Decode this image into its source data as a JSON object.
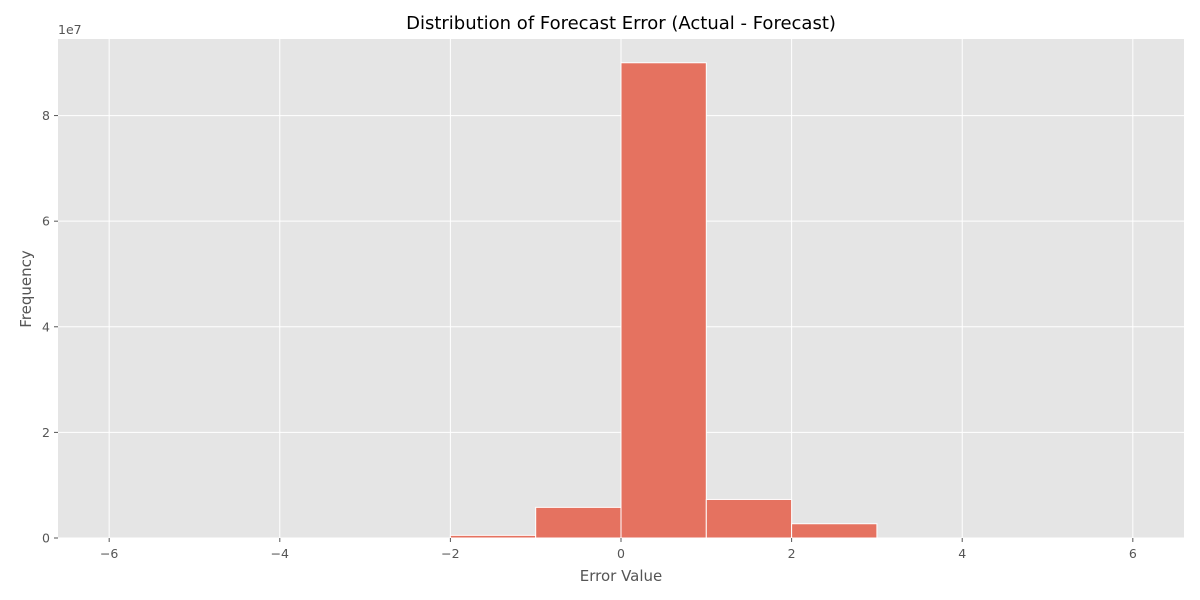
{
  "chart_data": {
    "type": "bar",
    "title": "Distribution of Forecast Error (Actual - Forecast)",
    "xlabel": "Error Value",
    "ylabel": "Frequency",
    "y_offset_label": "1e7",
    "xlim": [
      -6.6,
      6.6
    ],
    "ylim": [
      0,
      9.45
    ],
    "x_ticks": [
      -6,
      -4,
      -2,
      0,
      2,
      4,
      6
    ],
    "x_tick_labels": [
      "−6",
      "−4",
      "−2",
      "0",
      "2",
      "4",
      "6"
    ],
    "y_ticks": [
      0,
      2,
      4,
      6,
      8
    ],
    "y_tick_labels": [
      "0",
      "2",
      "4",
      "6",
      "8"
    ],
    "grid": true,
    "bins": [
      {
        "x_start": -6,
        "x_end": -5,
        "value": 0
      },
      {
        "x_start": -5,
        "x_end": -4,
        "value": 0
      },
      {
        "x_start": -4,
        "x_end": -3,
        "value": 0
      },
      {
        "x_start": -3,
        "x_end": -2,
        "value": 0
      },
      {
        "x_start": -2,
        "x_end": -1,
        "value": 0.05
      },
      {
        "x_start": -1,
        "x_end": 0,
        "value": 0.58
      },
      {
        "x_start": 0,
        "x_end": 1,
        "value": 9.0
      },
      {
        "x_start": 1,
        "x_end": 2,
        "value": 0.73
      },
      {
        "x_start": 2,
        "x_end": 3,
        "value": 0.27
      },
      {
        "x_start": 3,
        "x_end": 4,
        "value": 0
      },
      {
        "x_start": 4,
        "x_end": 5,
        "value": 0
      },
      {
        "x_start": 5,
        "x_end": 6,
        "value": 0
      }
    ],
    "colors": {
      "bar": "#e57260",
      "background": "#e5e5e5",
      "grid": "#ffffff"
    }
  }
}
